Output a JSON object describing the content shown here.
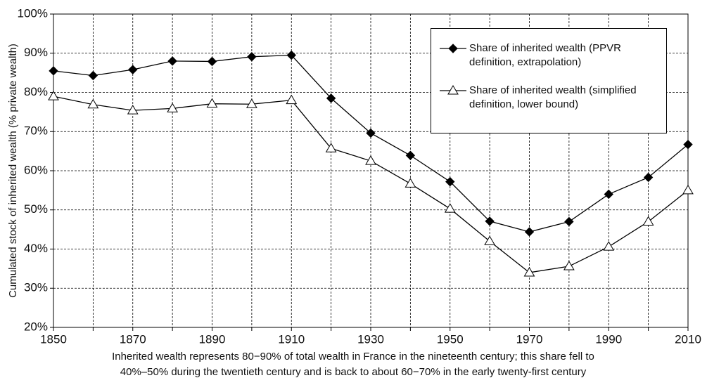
{
  "chart_data": {
    "type": "line",
    "ylabel": "Cumulated stock of inherited wealth (% private wealth)",
    "xlabel": [
      "Inherited wealth represents 80−90% of total wealth in France in the nineteenth century; this share fell to",
      "40%–50% during the twentieth century and is back to about 60−70% in the early twenty-first century"
    ],
    "x": [
      1850,
      1860,
      1870,
      1880,
      1890,
      1900,
      1910,
      1920,
      1930,
      1940,
      1950,
      1960,
      1970,
      1980,
      1990,
      2000,
      2010
    ],
    "series": [
      {
        "name": "Share of inherited wealth (PPVR definition, extrapolation)",
        "color": "#000000",
        "marker": "diamond",
        "values": [
          85.5,
          84.3,
          85.8,
          88,
          87.9,
          89.1,
          89.5,
          78.5,
          69.6,
          63.9,
          57.2,
          47.1,
          44.4,
          47,
          54,
          58.3,
          66.7
        ]
      },
      {
        "name": "Share of inherited wealth (simplified definition, lower bound)",
        "color": "#000000",
        "marker": "triangle",
        "values": [
          79,
          76.9,
          75.4,
          75.9,
          77.1,
          77,
          78,
          65.7,
          62.5,
          56.7,
          50.3,
          42,
          34,
          35.6,
          40.6,
          47,
          55
        ]
      }
    ],
    "xlim": [
      1850,
      2010
    ],
    "xticks": [
      1850,
      1870,
      1890,
      1910,
      1930,
      1950,
      1970,
      1990,
      2010
    ],
    "xminorticks": [
      1860,
      1880,
      1900,
      1920,
      1940,
      1960,
      1980,
      2000
    ],
    "ylim": [
      20,
      100
    ],
    "yticks": [
      {
        "value": 20,
        "label": "20%"
      },
      {
        "value": 30,
        "label": "30%"
      },
      {
        "value": 40,
        "label": "40%"
      },
      {
        "value": 50,
        "label": "50%"
      },
      {
        "value": 60,
        "label": "60%"
      },
      {
        "value": 70,
        "label": "70%"
      },
      {
        "value": 80,
        "label": "80%"
      },
      {
        "value": 90,
        "label": "90%"
      },
      {
        "value": 100,
        "label": "100%"
      }
    ],
    "grid": true,
    "legend": "upper right"
  }
}
